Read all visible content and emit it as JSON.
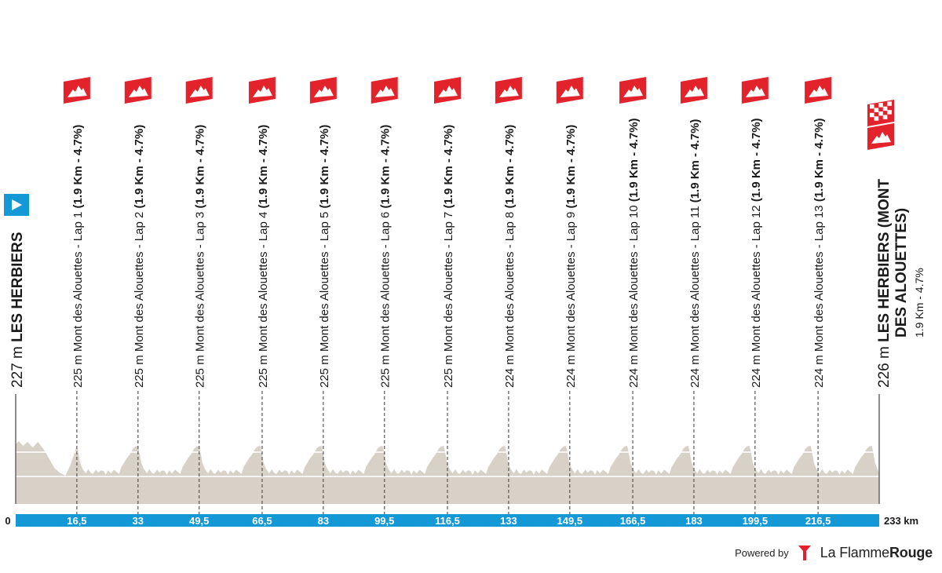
{
  "chart_data": {
    "type": "area",
    "title": "",
    "xlabel": "",
    "ylabel": "",
    "x_unit": "km",
    "total_distance": 233,
    "xlim": [
      0,
      233
    ],
    "axis_labels": [
      "0",
      "16,5",
      "33",
      "49,5",
      "66,5",
      "83",
      "99,5",
      "116,5",
      "133",
      "149,5",
      "166,5",
      "183",
      "199,5",
      "216,5",
      "233 km"
    ],
    "axis_values": [
      0,
      16.5,
      33,
      49.5,
      66.5,
      83,
      99.5,
      116.5,
      133,
      149.5,
      166.5,
      183,
      199.5,
      216.5,
      233
    ],
    "start": {
      "km": 0,
      "altitude": "227 m",
      "name": "LES HERBIERS"
    },
    "finish": {
      "km": 233,
      "altitude": "226 m",
      "name_line1": "LES HERBIERS (MONT",
      "name_line2": "DES ALOUETTES)",
      "climb_info": "1.9 Km - 4.7%"
    },
    "climbs": [
      {
        "km": 16.5,
        "altitude": "225 m",
        "name": "Mont des Alouettes - Lap 1",
        "detail": "(1.9 Km - 4.7%)"
      },
      {
        "km": 33,
        "altitude": "225 m",
        "name": "Mont des Alouettes - Lap 2",
        "detail": "(1.9 Km - 4.7%)"
      },
      {
        "km": 49.5,
        "altitude": "225 m",
        "name": "Mont des Alouettes - Lap 3",
        "detail": "(1.9 Km - 4.7%)"
      },
      {
        "km": 66.5,
        "altitude": "225 m",
        "name": "Mont des Alouettes - Lap 4",
        "detail": "(1.9 Km - 4.7%)"
      },
      {
        "km": 83,
        "altitude": "225 m",
        "name": "Mont des Alouettes - Lap 5",
        "detail": "(1.9 Km - 4.7%)"
      },
      {
        "km": 99.5,
        "altitude": "225 m",
        "name": "Mont des Alouettes - Lap 6",
        "detail": "(1.9 Km - 4.7%)"
      },
      {
        "km": 116.5,
        "altitude": "225 m",
        "name": "Mont des Alouettes - Lap 7",
        "detail": "(1.9 Km - 4.7%)"
      },
      {
        "km": 133,
        "altitude": "224 m",
        "name": "Mont des Alouettes - Lap 8",
        "detail": "(1.9 Km - 4.7%)"
      },
      {
        "km": 149.5,
        "altitude": "224 m",
        "name": "Mont des Alouettes - Lap 9",
        "detail": "(1.9 Km - 4.7%)"
      },
      {
        "km": 166.5,
        "altitude": "224 m",
        "name": "Mont des Alouettes - Lap 10",
        "detail": "(1.9 Km - 4.7%)"
      },
      {
        "km": 183,
        "altitude": "224 m",
        "name": "Mont des Alouettes - Lap 11",
        "detail": "(1.9 Km - 4.7%)"
      },
      {
        "km": 199.5,
        "altitude": "224 m",
        "name": "Mont des Alouettes - Lap 12",
        "detail": "(1.9 Km - 4.7%)"
      },
      {
        "km": 216.5,
        "altitude": "224 m",
        "name": "Mont des Alouettes - Lap 13",
        "detail": "(1.9 Km - 4.7%)"
      }
    ],
    "lap_length_km": 16.5,
    "colors": {
      "profile_fill": "#d8d1c8",
      "profile_stripe": "#ffffff",
      "axis_band": "#1499d6",
      "axis_text": "#ffffff",
      "marker_red": "#e3232c",
      "start_flag": "#1499d6",
      "text": "#1a1a1a"
    },
    "icons": {
      "start": "start-flag-icon",
      "climb": "mountain-climb-icon",
      "finish": "checkered-finish-icon"
    }
  },
  "footer": {
    "powered_by": "Powered by",
    "brand_part1": "La Flamme",
    "brand_part2": "Rouge",
    "logo_icon": "la-flamme-rouge-logo-icon"
  }
}
